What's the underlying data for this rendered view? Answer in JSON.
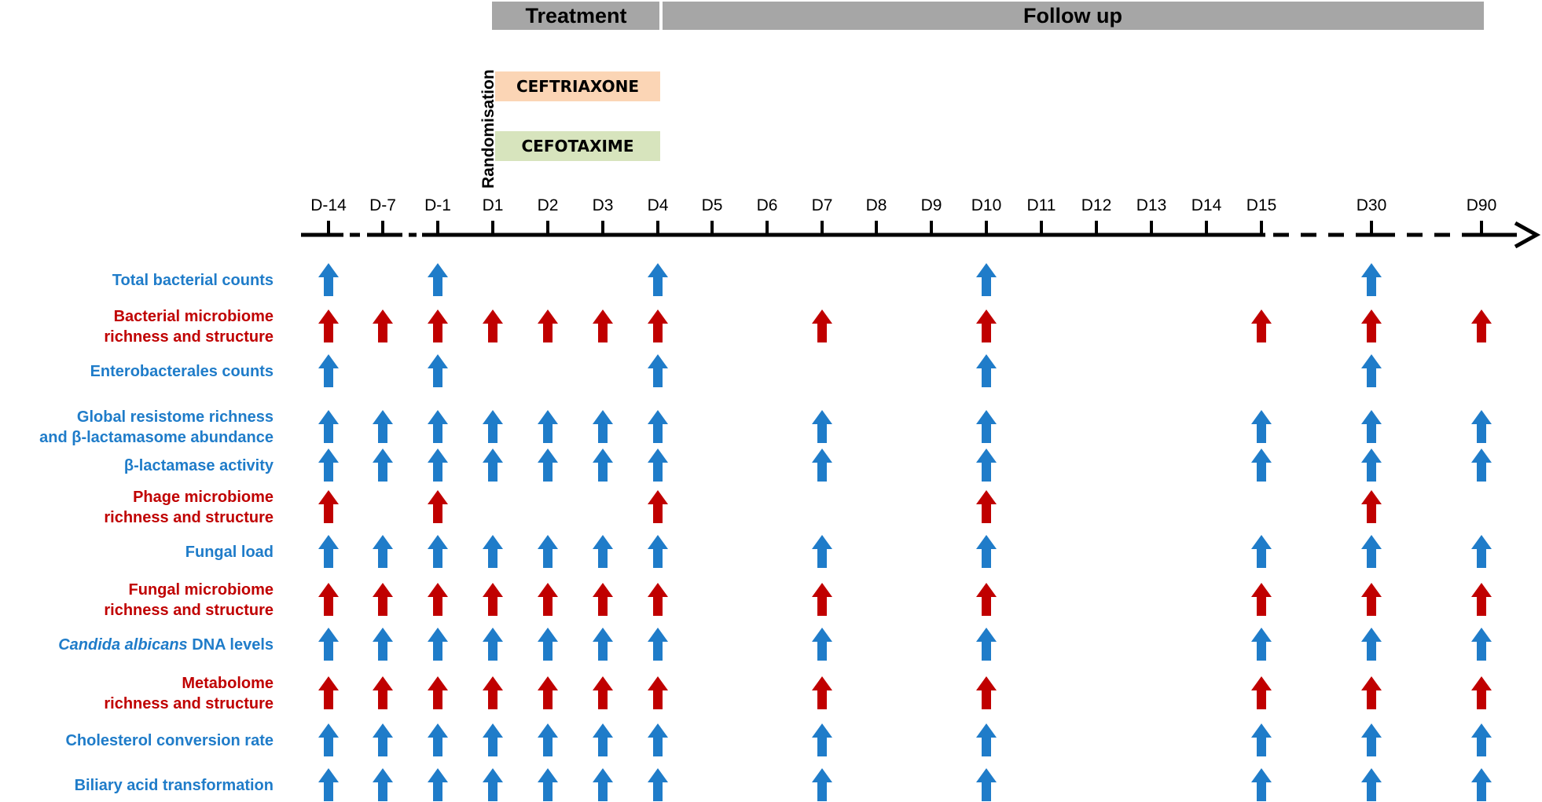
{
  "phases": [
    {
      "label": "Treatment",
      "color": "#a6a6a6"
    },
    {
      "label": "Follow up",
      "color": "#a6a6a6"
    }
  ],
  "randomisation_label": "Randomisation",
  "drugs": [
    {
      "label": "CEFTRIAXONE",
      "color": "#fbd5b5"
    },
    {
      "label": "CEFOTAXIME",
      "color": "#d7e4bd"
    }
  ],
  "days": [
    "D-14",
    "D-7",
    "D-1",
    "D1",
    "D2",
    "D3",
    "D4",
    "D5",
    "D6",
    "D7",
    "D8",
    "D9",
    "D10",
    "D11",
    "D12",
    "D13",
    "D14",
    "D15",
    "D30",
    "D90"
  ],
  "colors": {
    "blue": "#1f7cc9",
    "red": "#c00000",
    "axis": "#000000"
  },
  "rows": [
    {
      "lines": [
        "Total bacterial counts"
      ],
      "color": "blue",
      "days": [
        "D-14",
        "D-1",
        "D4",
        "D10",
        "D30"
      ]
    },
    {
      "lines": [
        "Bacterial microbiome",
        "richness and structure"
      ],
      "color": "red",
      "days": [
        "D-14",
        "D-7",
        "D-1",
        "D1",
        "D2",
        "D3",
        "D4",
        "D7",
        "D10",
        "D15",
        "D30",
        "D90"
      ]
    },
    {
      "lines": [
        "Enterobacterales counts"
      ],
      "color": "blue",
      "days": [
        "D-14",
        "D-1",
        "D4",
        "D10",
        "D30"
      ]
    },
    {
      "lines": [
        "Global resistome richness",
        "and β-lactamasome abundance"
      ],
      "color": "blue",
      "days": [
        "D-14",
        "D-7",
        "D-1",
        "D1",
        "D2",
        "D3",
        "D4",
        "D7",
        "D10",
        "D15",
        "D30",
        "D90"
      ]
    },
    {
      "lines": [
        "β-lactamase activity"
      ],
      "color": "blue",
      "days": [
        "D-14",
        "D-7",
        "D-1",
        "D1",
        "D2",
        "D3",
        "D4",
        "D7",
        "D10",
        "D15",
        "D30",
        "D90"
      ]
    },
    {
      "lines": [
        "Phage microbiome",
        "richness and structure"
      ],
      "color": "red",
      "days": [
        "D-14",
        "D-1",
        "D4",
        "D10",
        "D30"
      ]
    },
    {
      "lines": [
        "Fungal load"
      ],
      "color": "blue",
      "days": [
        "D-14",
        "D-7",
        "D-1",
        "D1",
        "D2",
        "D3",
        "D4",
        "D7",
        "D10",
        "D15",
        "D30",
        "D90"
      ]
    },
    {
      "lines": [
        "Fungal microbiome",
        "richness and structure"
      ],
      "color": "red",
      "days": [
        "D-14",
        "D-7",
        "D-1",
        "D1",
        "D2",
        "D3",
        "D4",
        "D7",
        "D10",
        "D15",
        "D30",
        "D90"
      ]
    },
    {
      "lines": [
        "Candida albicans DNA levels"
      ],
      "italic_prefix": "Candida albicans",
      "rest": " DNA levels",
      "color": "blue",
      "days": [
        "D-14",
        "D-7",
        "D-1",
        "D1",
        "D2",
        "D3",
        "D4",
        "D7",
        "D10",
        "D15",
        "D30",
        "D90"
      ]
    },
    {
      "lines": [
        "Metabolome",
        "richness and structure"
      ],
      "color": "red",
      "days": [
        "D-14",
        "D-7",
        "D-1",
        "D1",
        "D2",
        "D3",
        "D4",
        "D7",
        "D10",
        "D15",
        "D30",
        "D90"
      ]
    },
    {
      "lines": [
        "Cholesterol conversion rate"
      ],
      "color": "blue",
      "days": [
        "D-14",
        "D-7",
        "D-1",
        "D1",
        "D2",
        "D3",
        "D4",
        "D7",
        "D10",
        "D15",
        "D30",
        "D90"
      ]
    },
    {
      "lines": [
        "Biliary acid transformation"
      ],
      "color": "blue",
      "days": [
        "D-14",
        "D-7",
        "D-1",
        "D1",
        "D2",
        "D3",
        "D4",
        "D7",
        "D10",
        "D15",
        "D30",
        "D90"
      ]
    }
  ]
}
